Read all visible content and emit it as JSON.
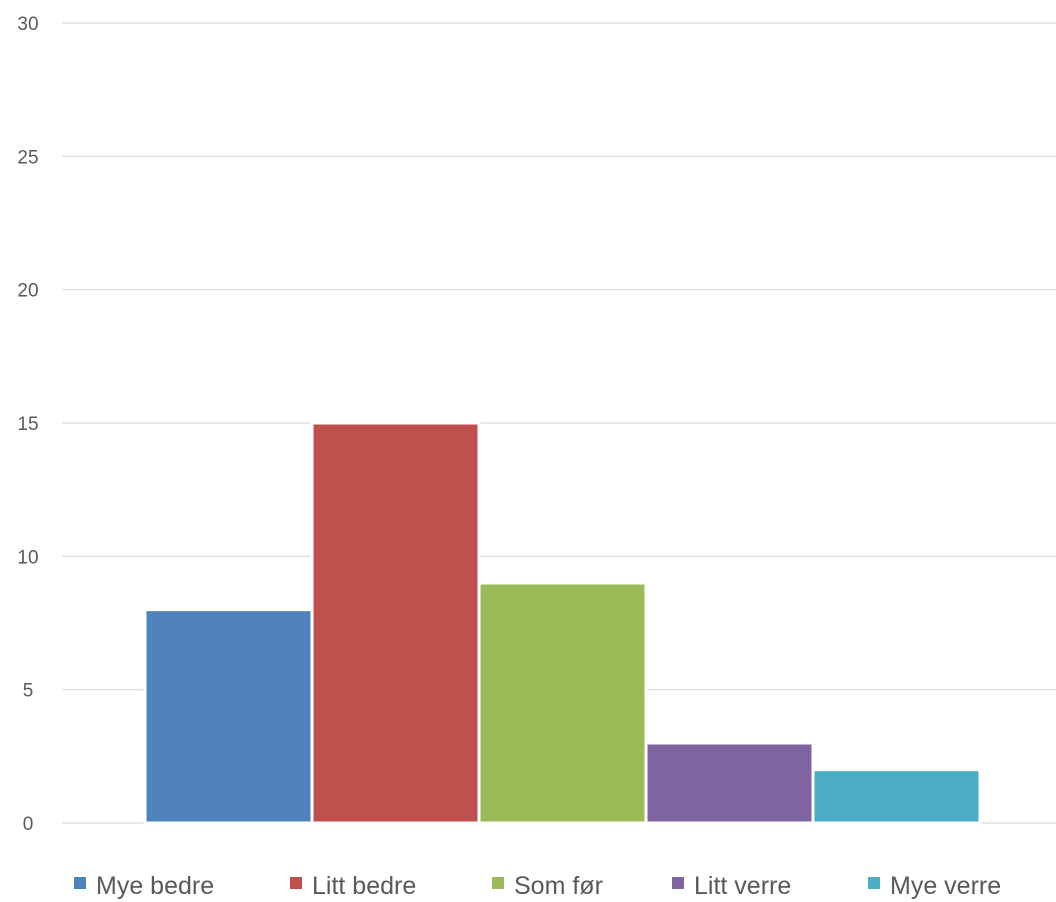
{
  "chart_data": {
    "type": "bar",
    "title": "",
    "xlabel": "",
    "ylabel": "",
    "ylim": [
      0,
      30
    ],
    "yticks": [
      0,
      5,
      10,
      15,
      20,
      25,
      30
    ],
    "grid": true,
    "legend_position": "bottom",
    "series": [
      {
        "name": "Mye bedre",
        "value": 8,
        "color": "#4f81bd"
      },
      {
        "name": "Litt bedre",
        "value": 15,
        "color": "#c0504d"
      },
      {
        "name": "Som før",
        "value": 9,
        "color": "#9bbb59"
      },
      {
        "name": "Litt verre",
        "value": 3,
        "color": "#8064a2"
      },
      {
        "name": "Mye verre",
        "value": 2,
        "color": "#4bacc6"
      }
    ]
  }
}
